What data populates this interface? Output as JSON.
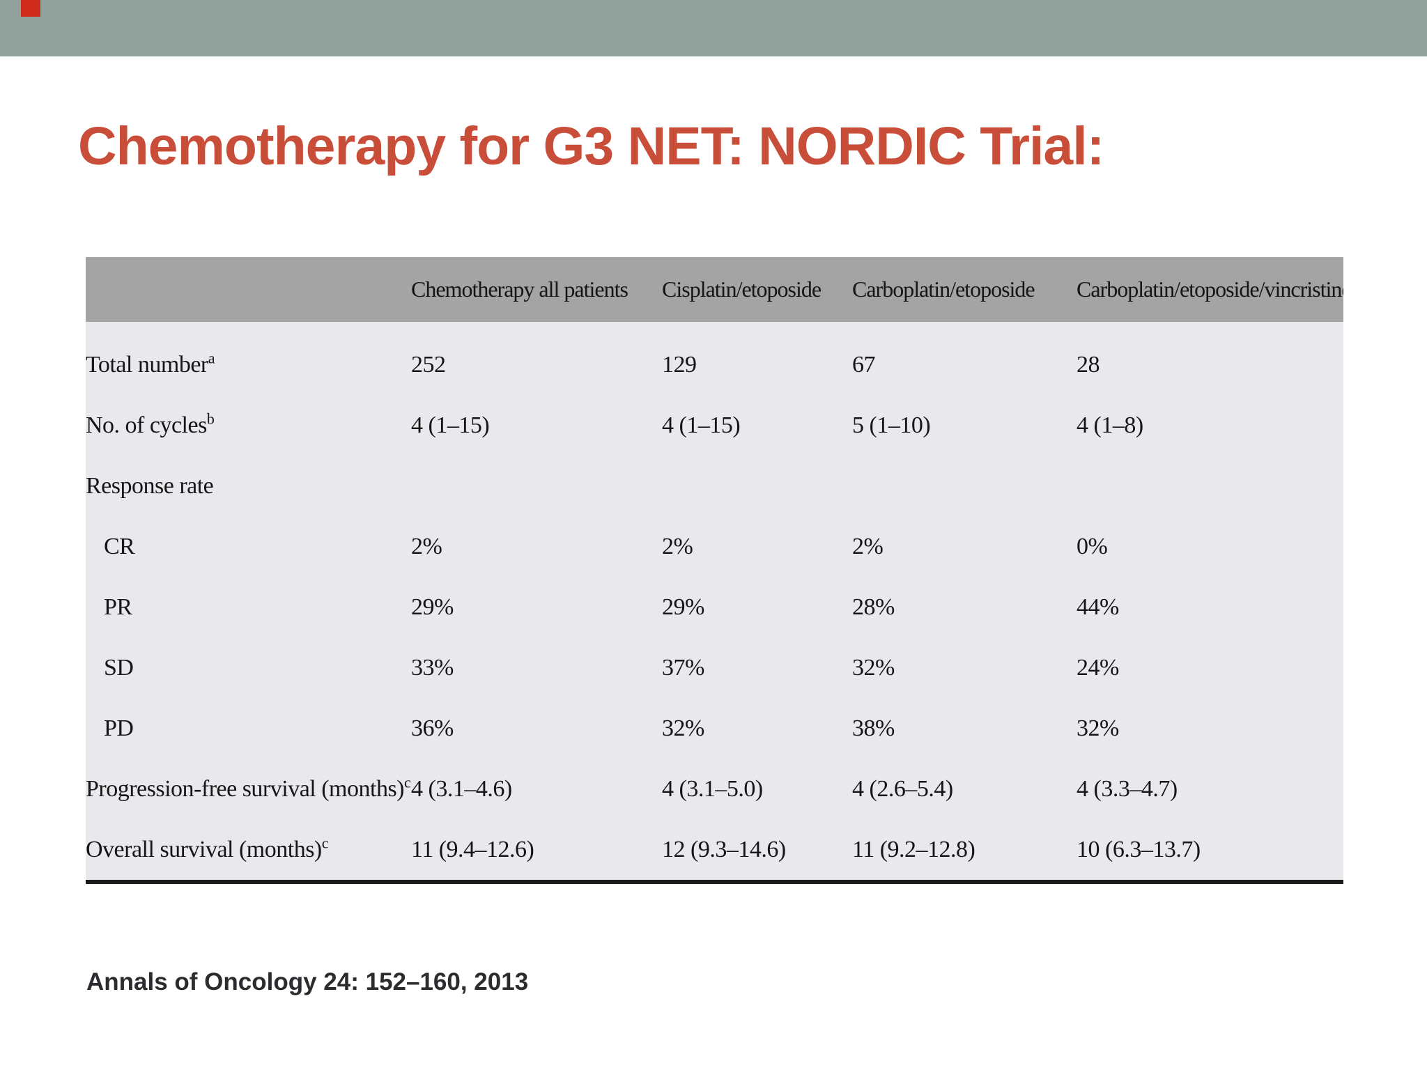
{
  "slide": {
    "title": "Chemotherapy for G3 NET: NORDIC Trial:",
    "citation": "Annals of Oncology 24: 152–160, 2013"
  },
  "theme": {
    "topbar_color": "#91a19b",
    "accent_color": "#cf2b1d",
    "title_color": "#c94e3a",
    "table_header_bg": "#a4a4a4",
    "table_body_bg": "#e9e8ec"
  },
  "table": {
    "columns": [
      "",
      "Chemotherapy all patients",
      "Cisplatin/etoposide",
      "Carboplatin/etoposide",
      "Carboplatin/etoposide/vincristine"
    ],
    "rows": [
      {
        "label": "Total number",
        "sup": "a",
        "indent": false,
        "values": [
          "252",
          "129",
          "67",
          "28"
        ]
      },
      {
        "label": "No. of cycles",
        "sup": "b",
        "indent": false,
        "values": [
          "4 (1–15)",
          "4 (1–15)",
          "5 (1–10)",
          "4 (1–8)"
        ]
      },
      {
        "label": "Response rate",
        "sup": "",
        "indent": false,
        "values": [
          "",
          "",
          "",
          ""
        ]
      },
      {
        "label": "CR",
        "sup": "",
        "indent": true,
        "values": [
          "2%",
          "2%",
          "2%",
          "0%"
        ]
      },
      {
        "label": "PR",
        "sup": "",
        "indent": true,
        "values": [
          "29%",
          "29%",
          "28%",
          "44%"
        ]
      },
      {
        "label": "SD",
        "sup": "",
        "indent": true,
        "values": [
          "33%",
          "37%",
          "32%",
          "24%"
        ]
      },
      {
        "label": "PD",
        "sup": "",
        "indent": true,
        "values": [
          "36%",
          "32%",
          "38%",
          "32%"
        ]
      },
      {
        "label": "Progression-free survival (months)",
        "sup": "c",
        "indent": false,
        "values": [
          "4 (3.1–4.6)",
          "4 (3.1–5.0)",
          "4 (2.6–5.4)",
          "4 (3.3–4.7)"
        ]
      },
      {
        "label": "Overall survival (months)",
        "sup": "c",
        "indent": false,
        "values": [
          "11 (9.4–12.6)",
          "12 (9.3–14.6)",
          "11 (9.2–12.8)",
          "10 (6.3–13.7)"
        ]
      }
    ]
  }
}
